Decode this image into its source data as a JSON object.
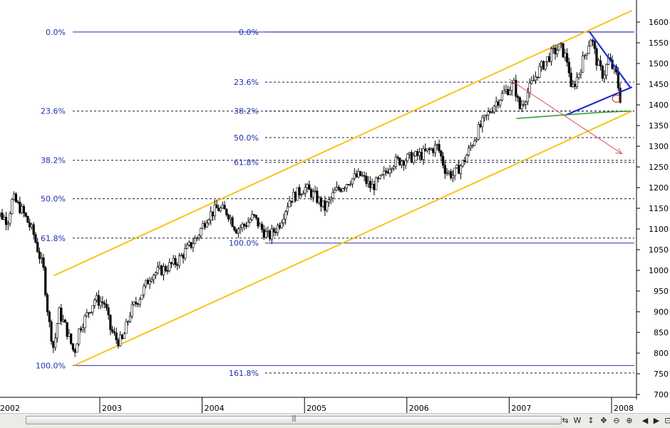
{
  "chart_data": {
    "type": "candlestick",
    "x_ticks": [
      "2002",
      "2003",
      "2004",
      "2005",
      "2006",
      "2007",
      "2008"
    ],
    "y_ticks": [
      1600,
      1550,
      1500,
      1450,
      1400,
      1350,
      1300,
      1250,
      1200,
      1150,
      1100,
      1050,
      1000,
      950,
      900,
      850,
      800,
      750,
      700
    ],
    "ylim": [
      690,
      1625
    ],
    "price_path": [
      [
        2001.95,
        1150
      ],
      [
        2002.1,
        1120
      ],
      [
        2002.15,
        1175
      ],
      [
        2002.25,
        1140
      ],
      [
        2002.35,
        1090
      ],
      [
        2002.45,
        1000
      ],
      [
        2002.5,
        880
      ],
      [
        2002.55,
        810
      ],
      [
        2002.6,
        900
      ],
      [
        2002.67,
        860
      ],
      [
        2002.75,
        800
      ],
      [
        2002.8,
        860
      ],
      [
        2002.87,
        890
      ],
      [
        2002.95,
        930
      ],
      [
        2003.05,
        920
      ],
      [
        2003.1,
        860
      ],
      [
        2003.17,
        830
      ],
      [
        2003.22,
        830
      ],
      [
        2003.3,
        900
      ],
      [
        2003.4,
        940
      ],
      [
        2003.5,
        990
      ],
      [
        2003.6,
        1000
      ],
      [
        2003.75,
        1020
      ],
      [
        2003.85,
        1050
      ],
      [
        2003.95,
        1080
      ],
      [
        2004.05,
        1130
      ],
      [
        2004.15,
        1150
      ],
      [
        2004.25,
        1140
      ],
      [
        2004.33,
        1100
      ],
      [
        2004.42,
        1110
      ],
      [
        2004.5,
        1130
      ],
      [
        2004.58,
        1100
      ],
      [
        2004.65,
        1080
      ],
      [
        2004.75,
        1110
      ],
      [
        2004.85,
        1170
      ],
      [
        2005.0,
        1200
      ],
      [
        2005.1,
        1180
      ],
      [
        2005.2,
        1150
      ],
      [
        2005.3,
        1190
      ],
      [
        2005.45,
        1220
      ],
      [
        2005.55,
        1230
      ],
      [
        2005.65,
        1200
      ],
      [
        2005.75,
        1220
      ],
      [
        2005.85,
        1260
      ],
      [
        2006.0,
        1270
      ],
      [
        2006.15,
        1280
      ],
      [
        2006.3,
        1300
      ],
      [
        2006.38,
        1240
      ],
      [
        2006.45,
        1230
      ],
      [
        2006.55,
        1260
      ],
      [
        2006.7,
        1340
      ],
      [
        2006.85,
        1400
      ],
      [
        2006.95,
        1430
      ],
      [
        2007.05,
        1450
      ],
      [
        2007.1,
        1390
      ],
      [
        2007.18,
        1430
      ],
      [
        2007.28,
        1480
      ],
      [
        2007.4,
        1520
      ],
      [
        2007.5,
        1540
      ],
      [
        2007.58,
        1500
      ],
      [
        2007.6,
        1430
      ],
      [
        2007.67,
        1470
      ],
      [
        2007.75,
        1530
      ],
      [
        2007.8,
        1565
      ],
      [
        2007.86,
        1500
      ],
      [
        2007.92,
        1470
      ],
      [
        2007.97,
        1510
      ],
      [
        2008.05,
        1470
      ],
      [
        2008.08,
        1420
      ],
      [
        2008.1,
        1405
      ]
    ],
    "fibonacci_left": {
      "levels": [
        {
          "label": "0.0%",
          "value": 1576
        },
        {
          "label": "23.6%",
          "value": 1385
        },
        {
          "label": "38.2%",
          "value": 1266
        },
        {
          "label": "50.0%",
          "value": 1173
        },
        {
          "label": "61.8%",
          "value": 1078
        },
        {
          "label": "100.0%",
          "value": 770
        }
      ]
    },
    "fibonacci_right": {
      "levels": [
        {
          "label": "0.0%",
          "value": 1576
        },
        {
          "label": "23.6%",
          "value": 1455
        },
        {
          "label": "38.2%",
          "value": 1385
        },
        {
          "label": "50.0%",
          "value": 1321
        },
        {
          "label": "61.8%",
          "value": 1261
        },
        {
          "label": "100.0%",
          "value": 1066
        },
        {
          "label": "161.8%",
          "value": 752
        }
      ]
    },
    "trend_channel": {
      "upper": [
        [
          2002.55,
          987
        ],
        [
          2008.2,
          1628
        ]
      ],
      "lower": [
        [
          2002.75,
          770
        ],
        [
          2008.2,
          1385
        ]
      ],
      "color": "#f5c518"
    },
    "triangle_lines": {
      "upper": [
        [
          2007.78,
          1578
        ],
        [
          2008.18,
          1443
        ]
      ],
      "lower": [
        [
          2007.55,
          1375
        ],
        [
          2008.2,
          1443
        ]
      ],
      "color": "#1f2fd6"
    },
    "green_curve": [
      [
        2007.07,
        1367
      ],
      [
        2007.5,
        1375
      ],
      [
        2007.9,
        1382
      ],
      [
        2008.18,
        1385
      ]
    ],
    "red_arrow": [
      [
        2007.0,
        1462
      ],
      [
        2008.1,
        1282
      ]
    ],
    "red_circle": [
      2008.05,
      1415
    ]
  },
  "toolbar": {
    "buttons": [
      "⇆",
      "W",
      "↕",
      "✥",
      "⊖",
      "⊕"
    ],
    "nav": [
      "◀",
      "▶",
      "⊡"
    ]
  },
  "colors": {
    "fib_text": "#1f2fb0",
    "fib_dashed": "#1a1a44",
    "channel": "#f5c518",
    "triangle": "#1f2fd6",
    "arrow": "#e05555",
    "green": "#2a9a2a"
  }
}
